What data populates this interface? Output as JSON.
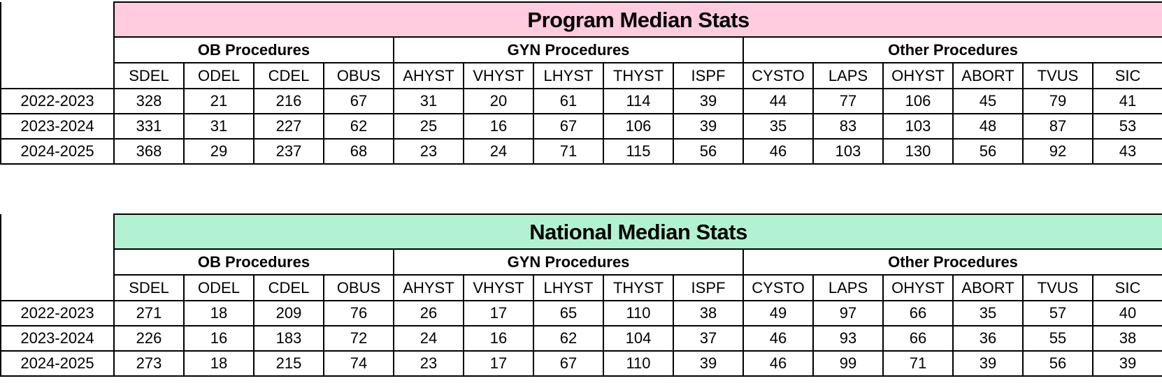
{
  "layout_note": "two stacked median-stats tables",
  "colors": {
    "program_title_bg": "#FFCBDE",
    "national_title_bg": "#B2F2D2",
    "border": "#000000",
    "background": "#FFFFFF"
  },
  "tables": [
    {
      "title": "Program Median Stats",
      "title_bg": "#FFCBDE",
      "groups": [
        {
          "label": "OB Procedures",
          "span": 4
        },
        {
          "label": "GYN Procedures",
          "span": 5
        },
        {
          "label": "Other Procedures",
          "span": 6
        }
      ],
      "columns": [
        "SDEL",
        "ODEL",
        "CDEL",
        "OBUS",
        "AHYST",
        "VHYST",
        "LHYST",
        "THYST",
        "ISPF",
        "CYSTO",
        "LAPS",
        "OHYST",
        "ABORT",
        "TVUS",
        "SIC"
      ],
      "rows": [
        {
          "label": "2022-2023",
          "values": [
            328,
            21,
            216,
            67,
            31,
            20,
            61,
            114,
            39,
            44,
            77,
            106,
            45,
            79,
            41
          ]
        },
        {
          "label": "2023-2024",
          "values": [
            331,
            31,
            227,
            62,
            25,
            16,
            67,
            106,
            39,
            35,
            83,
            103,
            48,
            87,
            53
          ]
        },
        {
          "label": "2024-2025",
          "values": [
            368,
            29,
            237,
            68,
            23,
            24,
            71,
            115,
            56,
            46,
            103,
            130,
            56,
            92,
            43
          ]
        }
      ]
    },
    {
      "title": "National Median Stats",
      "title_bg": "#B2F2D2",
      "groups": [
        {
          "label": "OB Procedures",
          "span": 4
        },
        {
          "label": "GYN Procedures",
          "span": 5
        },
        {
          "label": "Other Procedures",
          "span": 6
        }
      ],
      "columns": [
        "SDEL",
        "ODEL",
        "CDEL",
        "OBUS",
        "AHYST",
        "VHYST",
        "LHYST",
        "THYST",
        "ISPF",
        "CYSTO",
        "LAPS",
        "OHYST",
        "ABORT",
        "TVUS",
        "SIC"
      ],
      "rows": [
        {
          "label": "2022-2023",
          "values": [
            271,
            18,
            209,
            76,
            26,
            17,
            65,
            110,
            38,
            49,
            97,
            66,
            35,
            57,
            40
          ]
        },
        {
          "label": "2023-2024",
          "values": [
            226,
            16,
            183,
            72,
            24,
            16,
            62,
            104,
            37,
            46,
            93,
            66,
            36,
            55,
            38
          ]
        },
        {
          "label": "2024-2025",
          "values": [
            273,
            18,
            215,
            74,
            23,
            17,
            67,
            110,
            39,
            46,
            99,
            71,
            39,
            56,
            39
          ]
        }
      ]
    }
  ],
  "layout": {
    "label_col_width": 162,
    "data_col_width": 100
  }
}
